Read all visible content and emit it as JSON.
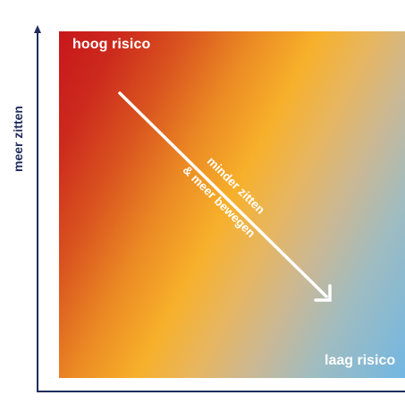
{
  "labels": {
    "high_risk": "hoog risico",
    "low_risk": "laag risico",
    "y_axis": "meer zitten",
    "arrow_line1": "minder zitten",
    "arrow_line2": "& meer bewegen"
  },
  "colors": {
    "high": "#c8161b",
    "mid": "#f7b02a",
    "low": "#72b7e3",
    "axis": "#1f2d5c",
    "text_on_gradient": "#ffffff"
  }
}
